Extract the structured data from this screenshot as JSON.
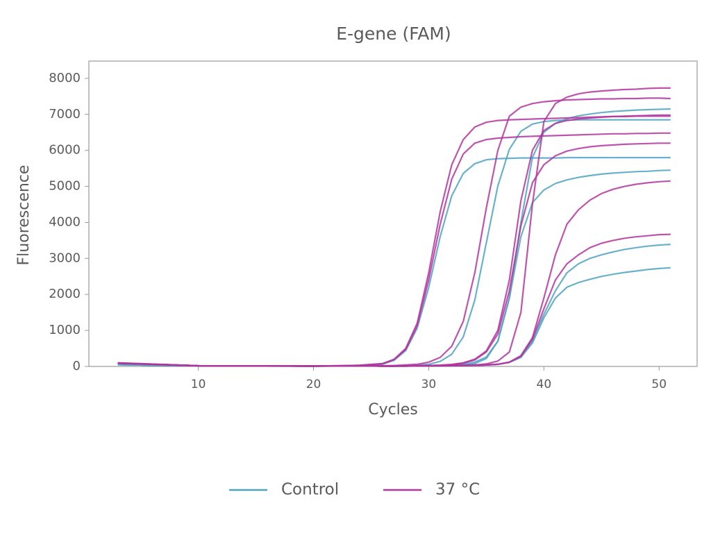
{
  "chart_data": {
    "type": "line",
    "title": "E-gene (FAM)",
    "x_label": "Cycles",
    "y_label": "Fluorescence",
    "x": [
      3,
      10,
      20,
      24,
      26,
      27,
      28,
      29,
      30,
      31,
      32,
      33,
      34,
      35,
      36,
      37,
      38,
      39,
      40,
      41,
      42,
      43,
      44,
      45,
      46,
      47,
      48,
      49,
      50,
      51
    ],
    "xlim": [
      0.5,
      53.3
    ],
    "xticks": [
      10,
      20,
      30,
      40,
      50
    ],
    "ylim": [
      0,
      8480
    ],
    "yticks": [
      0,
      1000,
      2000,
      3000,
      4000,
      5000,
      6000,
      7000,
      8000
    ],
    "grid": false,
    "legend": "bottom",
    "series": [
      {
        "name": "Control",
        "color": "#4fa3c2",
        "values": [
          60,
          15,
          10,
          20,
          64,
          170,
          440,
          1060,
          2190,
          3610,
          4740,
          5360,
          5630,
          5740,
          5770,
          5780,
          5790,
          5790,
          5790,
          5790,
          5800,
          5800,
          5800,
          5800,
          5800,
          5800,
          5800,
          5800,
          5800,
          5800
        ]
      },
      {
        "name": "Control",
        "color": "#4fa3c2",
        "values": [
          50,
          15,
          10,
          15,
          15,
          20,
          25,
          35,
          60,
          140,
          340,
          820,
          1840,
          3430,
          5010,
          6030,
          6530,
          6730,
          6800,
          6830,
          6840,
          6850,
          6850,
          6850,
          6850,
          6850,
          6850,
          6850,
          6850,
          6850
        ]
      },
      {
        "name": "Control",
        "color": "#4fa3c2",
        "values": [
          50,
          15,
          10,
          15,
          10,
          10,
          15,
          15,
          20,
          20,
          25,
          40,
          80,
          220,
          700,
          1900,
          3600,
          4550,
          4900,
          5080,
          5180,
          5250,
          5300,
          5340,
          5370,
          5390,
          5410,
          5420,
          5440,
          5450
        ]
      },
      {
        "name": "Control",
        "color": "#4fa3c2",
        "values": [
          50,
          15,
          10,
          15,
          10,
          10,
          10,
          15,
          15,
          20,
          20,
          25,
          30,
          40,
          60,
          110,
          250,
          650,
          1350,
          1900,
          2200,
          2330,
          2420,
          2500,
          2560,
          2610,
          2650,
          2690,
          2720,
          2740
        ]
      },
      {
        "name": "Control",
        "color": "#4fa3c2",
        "values": [
          50,
          15,
          10,
          15,
          10,
          10,
          10,
          15,
          15,
          20,
          20,
          25,
          30,
          40,
          60,
          120,
          270,
          700,
          1450,
          2100,
          2600,
          2850,
          3000,
          3100,
          3180,
          3250,
          3300,
          3340,
          3370,
          3390
        ]
      },
      {
        "name": "Control",
        "color": "#4fa3c2",
        "values": [
          50,
          15,
          10,
          15,
          10,
          10,
          15,
          15,
          20,
          25,
          35,
          60,
          120,
          260,
          700,
          1900,
          4000,
          5800,
          6500,
          6750,
          6880,
          6960,
          7010,
          7050,
          7080,
          7100,
          7120,
          7130,
          7140,
          7150
        ]
      },
      {
        "name": "37 °C",
        "color": "#b2359e",
        "values": [
          100,
          20,
          10,
          30,
          80,
          200,
          500,
          1200,
          2600,
          4300,
          5600,
          6300,
          6650,
          6780,
          6830,
          6850,
          6860,
          6870,
          6880,
          6890,
          6900,
          6910,
          6920,
          6930,
          6940,
          6940,
          6950,
          6950,
          6950,
          6950
        ]
      },
      {
        "name": "37 °C",
        "color": "#b2359e",
        "values": [
          100,
          20,
          10,
          30,
          75,
          190,
          470,
          1130,
          2400,
          3950,
          5200,
          5900,
          6200,
          6300,
          6340,
          6360,
          6380,
          6390,
          6400,
          6410,
          6420,
          6430,
          6440,
          6450,
          6460,
          6460,
          6470,
          6470,
          6480,
          6480
        ]
      },
      {
        "name": "37 °C",
        "color": "#b2359e",
        "values": [
          90,
          20,
          10,
          20,
          20,
          25,
          40,
          60,
          120,
          250,
          560,
          1250,
          2600,
          4400,
          6000,
          6950,
          7200,
          7300,
          7350,
          7380,
          7400,
          7410,
          7420,
          7430,
          7430,
          7440,
          7440,
          7450,
          7450,
          7440
        ]
      },
      {
        "name": "37 °C",
        "color": "#b2359e",
        "values": [
          90,
          20,
          10,
          20,
          10,
          10,
          15,
          20,
          25,
          35,
          55,
          100,
          200,
          430,
          1000,
          2400,
          4600,
          6000,
          6550,
          6750,
          6830,
          6870,
          6900,
          6920,
          6940,
          6950,
          6960,
          6970,
          6980,
          6980
        ]
      },
      {
        "name": "37 °C",
        "color": "#b2359e",
        "values": [
          90,
          20,
          10,
          20,
          10,
          10,
          10,
          15,
          15,
          20,
          25,
          30,
          40,
          70,
          150,
          400,
          1500,
          4500,
          6800,
          7300,
          7480,
          7570,
          7620,
          7650,
          7670,
          7690,
          7700,
          7720,
          7730,
          7730
        ]
      },
      {
        "name": "37 °C",
        "color": "#b2359e",
        "values": [
          90,
          20,
          10,
          20,
          10,
          10,
          10,
          15,
          15,
          20,
          20,
          25,
          30,
          40,
          60,
          120,
          300,
          800,
          1900,
          3100,
          3950,
          4350,
          4620,
          4800,
          4920,
          5000,
          5060,
          5100,
          5130,
          5150
        ]
      },
      {
        "name": "37 °C",
        "color": "#b2359e",
        "values": [
          90,
          20,
          10,
          20,
          10,
          10,
          10,
          15,
          15,
          20,
          20,
          25,
          30,
          40,
          60,
          120,
          280,
          750,
          1600,
          2400,
          2850,
          3100,
          3300,
          3420,
          3500,
          3560,
          3600,
          3630,
          3660,
          3670
        ]
      },
      {
        "name": "37 °C",
        "color": "#b2359e",
        "values": [
          90,
          20,
          10,
          20,
          10,
          10,
          15,
          20,
          25,
          30,
          50,
          90,
          180,
          400,
          900,
          2100,
          3900,
          5100,
          5600,
          5850,
          5980,
          6050,
          6100,
          6130,
          6150,
          6170,
          6180,
          6190,
          6200,
          6200
        ]
      }
    ]
  }
}
